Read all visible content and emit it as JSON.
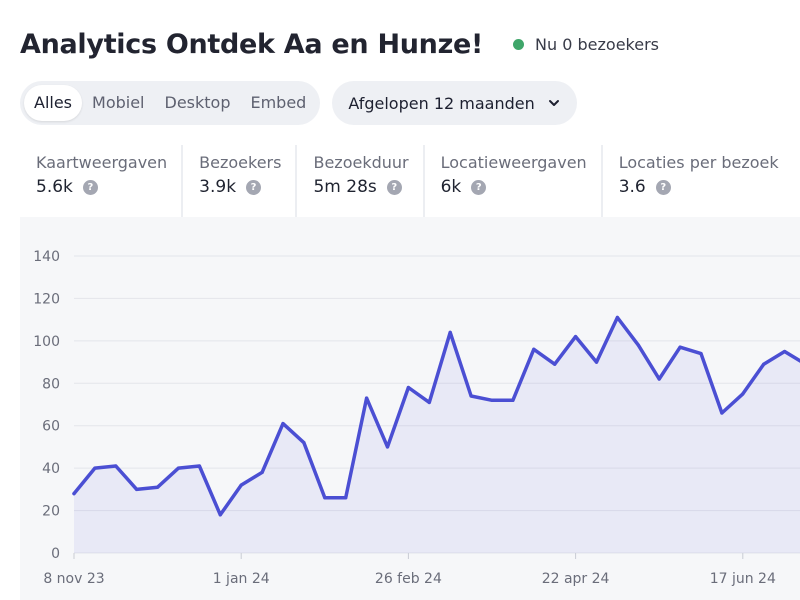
{
  "header": {
    "title": "Analytics Ontdek Aa en Hunze!",
    "live_label": "Nu 0 bezoekers",
    "live_color": "#3fa66a"
  },
  "filters": {
    "device_tabs": [
      "Alles",
      "Mobiel",
      "Desktop",
      "Embed"
    ],
    "active_device": "Alles",
    "range_label": "Afgelopen 12 maanden",
    "range_icon": "chevron-down-icon"
  },
  "metrics": [
    {
      "label": "Kaartweergaven",
      "value": "5.6k"
    },
    {
      "label": "Bezoekers",
      "value": "3.9k"
    },
    {
      "label": "Bezoekduur",
      "value": "5m 28s"
    },
    {
      "label": "Locatieweergaven",
      "value": "6k"
    },
    {
      "label": "Locaties per bezoek",
      "value": "3.6"
    }
  ],
  "chart_data": {
    "type": "area",
    "title": "",
    "xlabel": "",
    "ylabel": "",
    "ylim": [
      0,
      140
    ],
    "yticks": [
      0,
      20,
      40,
      60,
      80,
      100,
      120,
      140
    ],
    "grid": true,
    "line_color": "#4b4fd3",
    "x_tick_labels": [
      {
        "label": "8 nov 23",
        "index": 0
      },
      {
        "label": "1 jan 24",
        "index": 8
      },
      {
        "label": "26 feb 24",
        "index": 16
      },
      {
        "label": "22 apr 24",
        "index": 24
      },
      {
        "label": "17 jun 24",
        "index": 32
      }
    ],
    "values": [
      28,
      40,
      41,
      30,
      31,
      40,
      41,
      18,
      32,
      38,
      61,
      52,
      26,
      26,
      73,
      50,
      78,
      71,
      104,
      74,
      72,
      72,
      96,
      89,
      102,
      90,
      111,
      98,
      82,
      97,
      94,
      66,
      75,
      89,
      95,
      89
    ]
  }
}
